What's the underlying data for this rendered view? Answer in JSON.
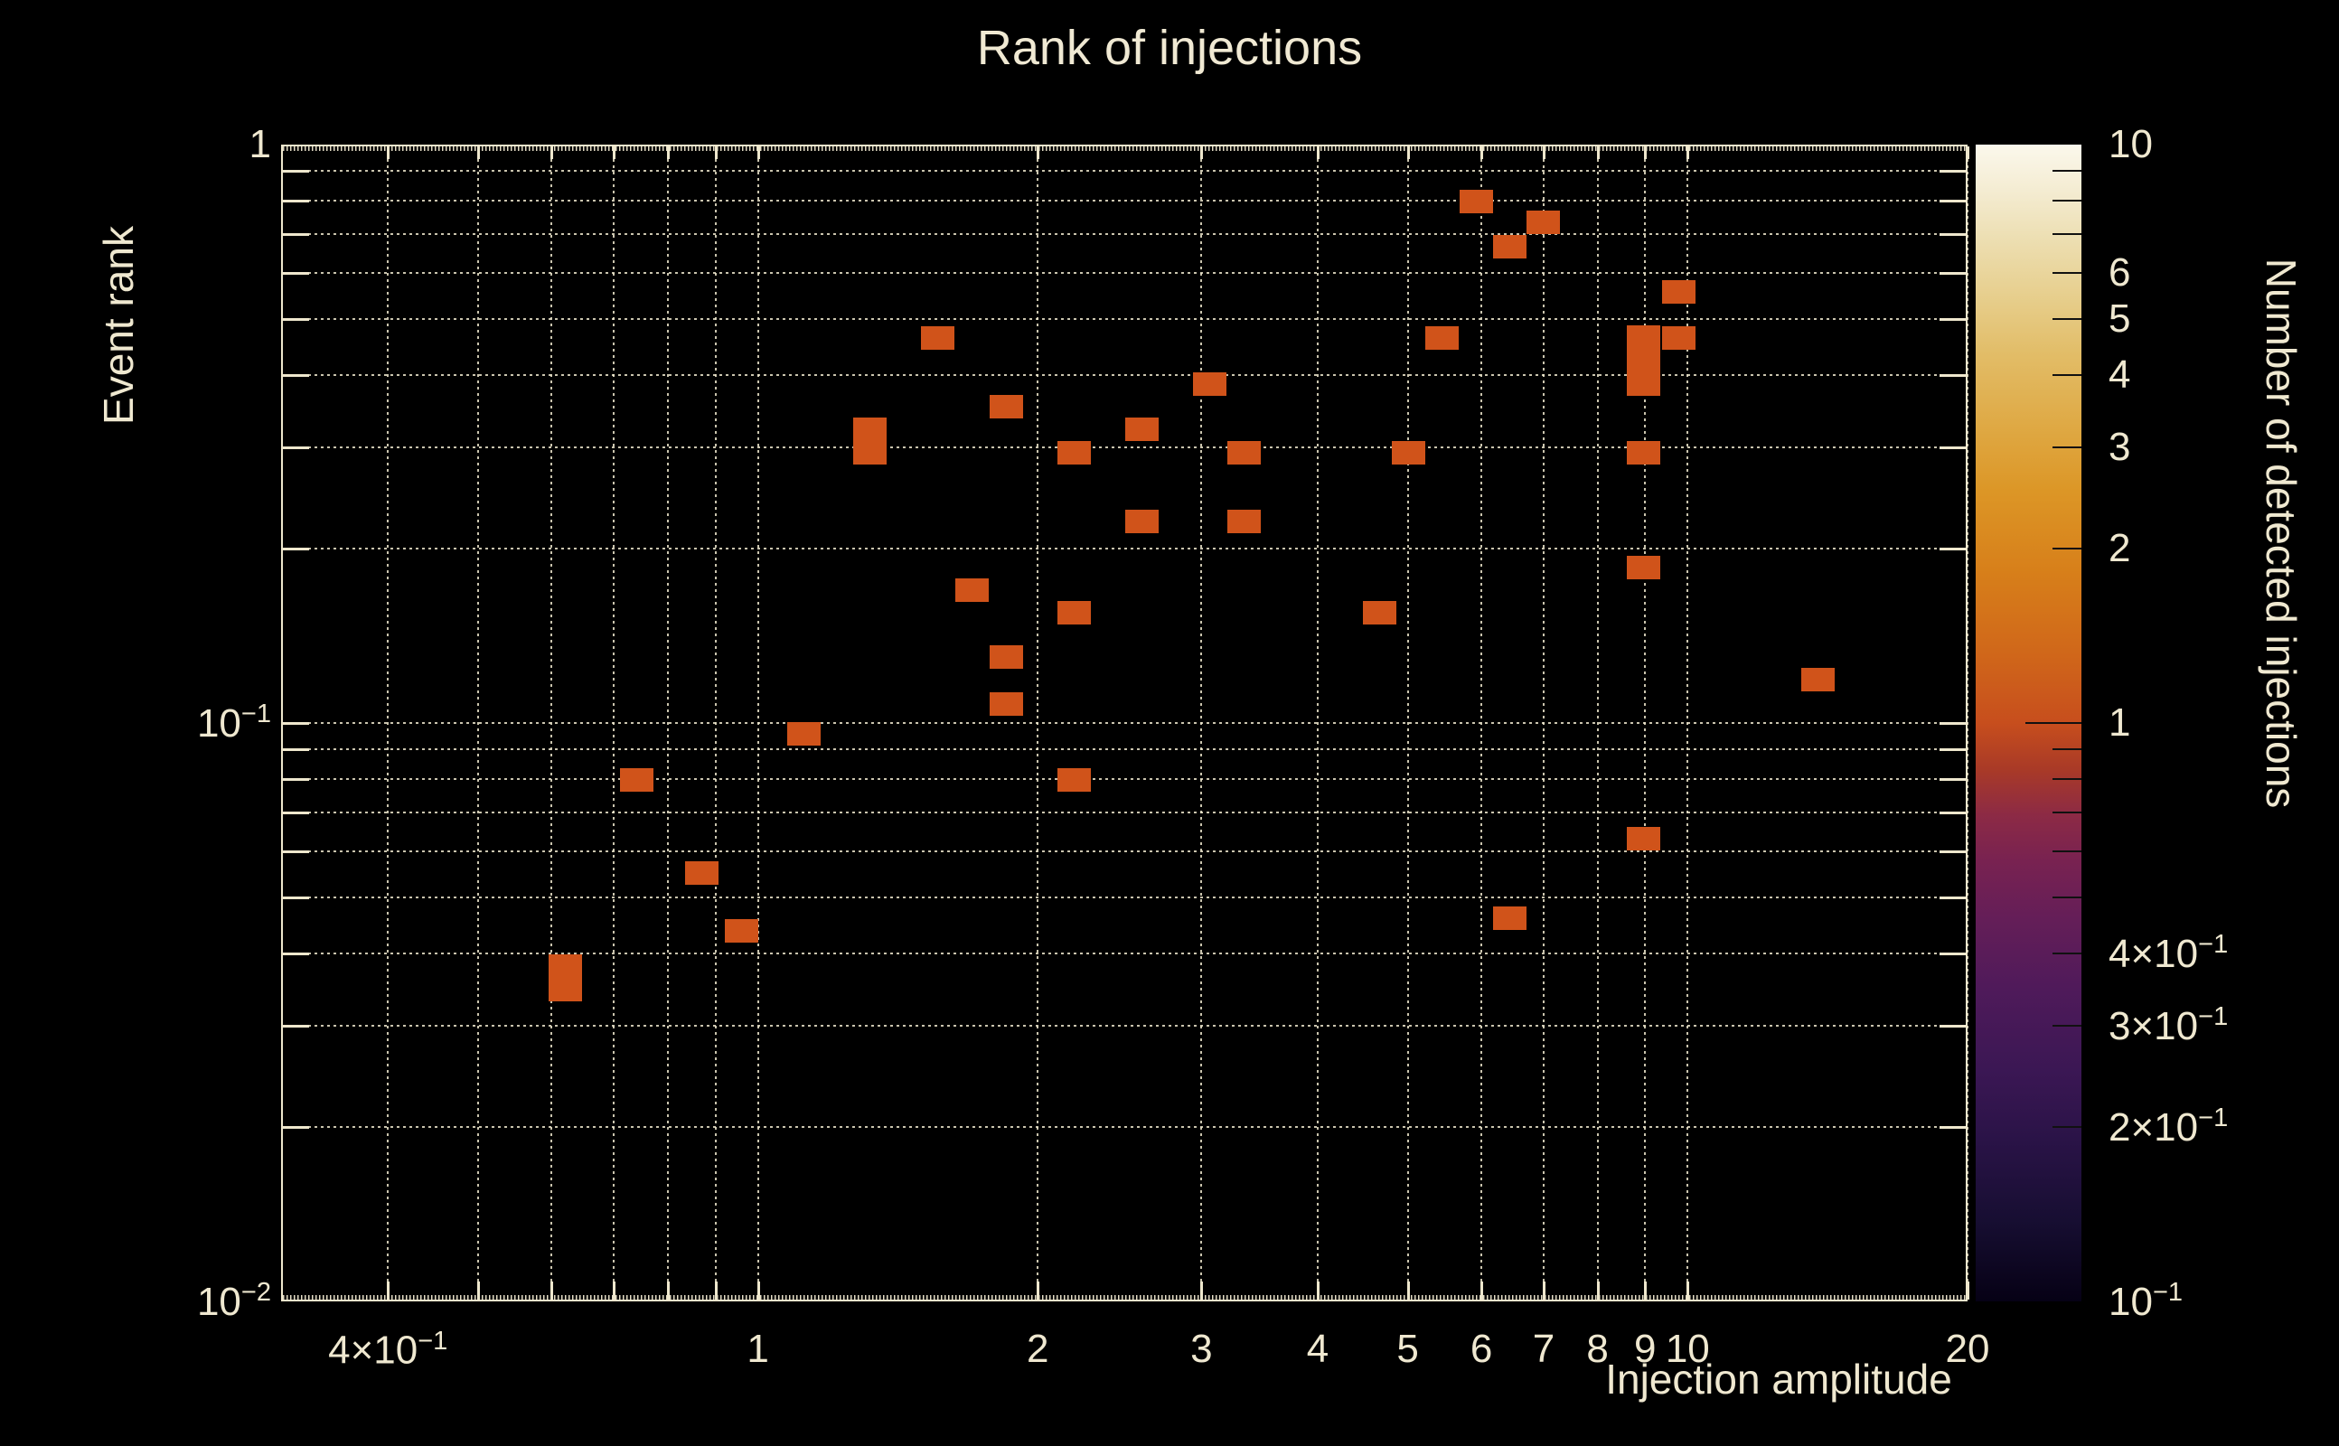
{
  "chart_data": {
    "type": "heatmap",
    "title": "Rank of injections",
    "xlabel": "Injection amplitude",
    "ylabel": "Event rank",
    "zlabel": "Number of detected injections",
    "xscale": "log",
    "yscale": "log",
    "zscale": "log",
    "xlim": [
      0.307,
      20
    ],
    "ylim": [
      0.01,
      1
    ],
    "zlim": [
      0.1,
      10
    ],
    "grid": true,
    "grid_x": [
      0.4,
      0.5,
      0.6,
      0.7,
      0.8,
      0.9,
      1,
      2,
      3,
      4,
      5,
      6,
      7,
      8,
      9,
      10,
      20
    ],
    "grid_y": [
      0.02,
      0.03,
      0.04,
      0.05,
      0.06,
      0.07,
      0.08,
      0.09,
      0.1,
      0.2,
      0.3,
      0.4,
      0.5,
      0.6,
      0.7,
      0.8,
      0.9
    ],
    "x_ticks": [
      {
        "v": 0.4,
        "label": "4×10^−1"
      },
      {
        "v": 1,
        "label": "1"
      },
      {
        "v": 2,
        "label": "2"
      },
      {
        "v": 3,
        "label": "3"
      },
      {
        "v": 4,
        "label": "4"
      },
      {
        "v": 5,
        "label": "5"
      },
      {
        "v": 6,
        "label": "6"
      },
      {
        "v": 7,
        "label": "7"
      },
      {
        "v": 8,
        "label": "8"
      },
      {
        "v": 9,
        "label": "9"
      },
      {
        "v": 10,
        "label": "10"
      },
      {
        "v": 20,
        "label": "20"
      }
    ],
    "y_ticks": [
      {
        "v": 1,
        "label": "1"
      },
      {
        "v": 0.1,
        "label": "10^−1"
      },
      {
        "v": 0.01,
        "label": "10^−2"
      }
    ],
    "colorbar_ticks": [
      {
        "v": 10,
        "label": "10"
      },
      {
        "v": 6,
        "label": "6"
      },
      {
        "v": 5,
        "label": "5"
      },
      {
        "v": 4,
        "label": "4"
      },
      {
        "v": 3,
        "label": "3"
      },
      {
        "v": 2,
        "label": "2"
      },
      {
        "v": 1,
        "label": "1"
      },
      {
        "v": 0.4,
        "label": "4×10^−1"
      },
      {
        "v": 0.3,
        "label": "3×10^−1"
      },
      {
        "v": 0.2,
        "label": "2×10^−1"
      },
      {
        "v": 0.1,
        "label": "10^−1"
      }
    ],
    "colorbar_minor_tick_values": [
      0.2,
      0.3,
      0.4,
      0.5,
      0.6,
      0.7,
      0.8,
      0.9,
      2,
      3,
      4,
      5,
      6,
      7,
      8,
      9
    ],
    "bin_width_decades": 0.0366,
    "bin_height_decades": 0.0399,
    "points": [
      {
        "x": 0.62,
        "y": 0.0363,
        "count": 1,
        "hbins": 2
      },
      {
        "x": 0.74,
        "y": 0.0796,
        "count": 1
      },
      {
        "x": 0.87,
        "y": 0.0551,
        "count": 1
      },
      {
        "x": 0.96,
        "y": 0.0437,
        "count": 1
      },
      {
        "x": 1.12,
        "y": 0.0957,
        "count": 1
      },
      {
        "x": 1.32,
        "y": 0.307,
        "count": 1,
        "hbins": 2
      },
      {
        "x": 1.56,
        "y": 0.463,
        "count": 1
      },
      {
        "x": 1.7,
        "y": 0.17,
        "count": 1
      },
      {
        "x": 1.85,
        "y": 0.352,
        "count": 1
      },
      {
        "x": 1.85,
        "y": 0.13,
        "count": 1
      },
      {
        "x": 1.85,
        "y": 0.108,
        "count": 1
      },
      {
        "x": 2.19,
        "y": 0.293,
        "count": 1
      },
      {
        "x": 2.19,
        "y": 0.155,
        "count": 1
      },
      {
        "x": 2.19,
        "y": 0.0797,
        "count": 1
      },
      {
        "x": 2.59,
        "y": 0.322,
        "count": 1
      },
      {
        "x": 2.59,
        "y": 0.223,
        "count": 1
      },
      {
        "x": 3.06,
        "y": 0.385,
        "count": 1
      },
      {
        "x": 3.33,
        "y": 0.293,
        "count": 1
      },
      {
        "x": 3.33,
        "y": 0.223,
        "count": 1
      },
      {
        "x": 4.66,
        "y": 0.155,
        "count": 1
      },
      {
        "x": 5.01,
        "y": 0.293,
        "count": 1
      },
      {
        "x": 5.44,
        "y": 0.463,
        "count": 1
      },
      {
        "x": 5.92,
        "y": 0.797,
        "count": 1
      },
      {
        "x": 6.44,
        "y": 0.666,
        "count": 1
      },
      {
        "x": 6.44,
        "y": 0.0459,
        "count": 1
      },
      {
        "x": 7.0,
        "y": 0.733,
        "count": 1
      },
      {
        "x": 8.97,
        "y": 0.423,
        "count": 1,
        "hbins": 3
      },
      {
        "x": 8.97,
        "y": 0.293,
        "count": 1
      },
      {
        "x": 8.97,
        "y": 0.186,
        "count": 1
      },
      {
        "x": 8.97,
        "y": 0.0631,
        "count": 1
      },
      {
        "x": 9.78,
        "y": 0.463,
        "count": 1
      },
      {
        "x": 9.78,
        "y": 0.556,
        "count": 1
      },
      {
        "x": 13.8,
        "y": 0.119,
        "count": 1
      }
    ],
    "colors": {
      "background": "#000000",
      "text": "#f0e9d3",
      "frame": "#eee7cd",
      "grid": "#eee7cd",
      "bin_fill": "#d0531a",
      "colorbar_stops": [
        [
          0.0,
          "#060115"
        ],
        [
          0.07,
          "#170e32"
        ],
        [
          0.14,
          "#2a1347"
        ],
        [
          0.2,
          "#3b1754"
        ],
        [
          0.27,
          "#4f1a5a"
        ],
        [
          0.33,
          "#641e58"
        ],
        [
          0.38,
          "#782251"
        ],
        [
          0.42,
          "#8c2a45"
        ],
        [
          0.46,
          "#a93a27"
        ],
        [
          0.5,
          "#c74e1d"
        ],
        [
          0.56,
          "#d0671a"
        ],
        [
          0.63,
          "#d77f1a"
        ],
        [
          0.7,
          "#dc9626"
        ],
        [
          0.76,
          "#dfaa46"
        ],
        [
          0.82,
          "#e2bd68"
        ],
        [
          0.87,
          "#e7cf8e"
        ],
        [
          0.92,
          "#eddfb3"
        ],
        [
          0.96,
          "#f4ecd2"
        ],
        [
          1.0,
          "#fbf8ec"
        ]
      ]
    }
  }
}
